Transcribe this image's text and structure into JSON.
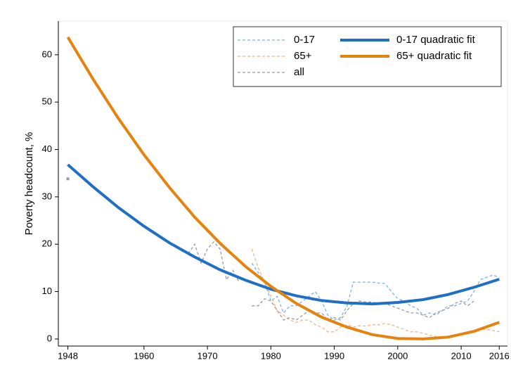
{
  "chart_data": {
    "type": "line",
    "y_label": "Poverty headcount, %",
    "xlim": [
      1946.5,
      2017.3
    ],
    "ylim": [
      -1.5,
      67.1
    ],
    "xticks": [
      1948,
      1960,
      1970,
      1980,
      1990,
      2000,
      2010,
      2016
    ],
    "yticks": [
      0,
      10,
      20,
      30,
      40,
      50,
      60
    ],
    "series": [
      {
        "name": "0-17",
        "color": "#74b3ea",
        "style": "dashed",
        "x": [
          1977,
          1978,
          1979,
          1980,
          1981,
          1982,
          1983,
          1984,
          1985,
          1986,
          1987,
          1988,
          1989,
          1990,
          1991,
          1992,
          1993,
          1994,
          1995,
          1996,
          1997,
          1998,
          1999,
          2000,
          2001,
          2002,
          2003,
          2004,
          2005,
          2006,
          2007,
          2008,
          2009,
          2010,
          2011,
          2012,
          2013,
          2014,
          2015,
          2016
        ],
        "values": [
          16,
          14,
          12,
          8,
          9,
          5.5,
          7,
          7,
          8,
          9,
          10,
          8,
          5,
          4,
          4.5,
          7,
          12,
          12,
          12,
          12,
          11.8,
          11.7,
          10,
          8.5,
          8,
          7,
          6.5,
          5,
          5.5,
          5,
          6,
          7,
          7,
          7.5,
          8,
          10,
          12.5,
          13,
          13.5,
          13
        ]
      },
      {
        "name": "65+",
        "color": "#f6b27c",
        "style": "dashed",
        "x": [
          1977,
          1978,
          1979,
          1980,
          1981,
          1982,
          1983,
          1984,
          1985,
          1986,
          1987,
          1988,
          1989,
          1990,
          1991,
          1992,
          1993,
          1994,
          1995,
          1996,
          1997,
          1998,
          1999,
          2000,
          2001,
          2002,
          2003,
          2004,
          2005,
          2006,
          2007,
          2008,
          2009,
          2010,
          2011,
          2012,
          2013,
          2014,
          2015,
          2016
        ],
        "values": [
          19,
          15,
          12,
          9,
          6,
          5,
          4,
          3.5,
          4,
          4,
          3,
          2.5,
          1.5,
          1.5,
          2.5,
          3,
          2.5,
          2.8,
          2.7,
          3,
          3,
          3.3,
          3,
          2.5,
          2,
          1.5,
          1.5,
          1.2,
          0.8,
          0.5,
          0.3,
          0.5,
          0.8,
          1,
          1.2,
          1.5,
          2,
          2,
          1.8,
          1.5
        ]
      },
      {
        "name": "all",
        "color": "#9a9a9a",
        "style": "dashed",
        "x": [
          1948,
          1966,
          1967,
          1968,
          1969,
          1970,
          1971,
          1972,
          1973,
          1974,
          1975,
          1976,
          1977,
          1978,
          1979,
          1980,
          1981,
          1982,
          1983,
          1984,
          1985,
          1986,
          1987,
          1988,
          1989,
          1990,
          1991,
          1992,
          1993,
          1994,
          1995,
          1996,
          1997,
          1998,
          1999,
          2000,
          2001,
          2002,
          2003,
          2004,
          2005,
          2006,
          2007,
          2008,
          2009,
          2010,
          2011,
          2012
        ],
        "values": [
          33.8,
          null,
          18,
          20,
          16,
          19,
          20.5,
          19,
          12.5,
          14.5,
          12,
          null,
          7,
          7,
          8.5,
          8,
          6,
          4,
          4.5,
          4,
          5,
          6,
          5.5,
          5.5,
          4,
          4.5,
          4,
          6,
          7.5,
          8,
          7.8,
          7.8,
          7.5,
          7.5,
          7,
          6.5,
          6,
          5.5,
          5.5,
          5,
          4.5,
          5.5,
          6,
          6.5,
          7.5,
          8,
          7,
          8
        ]
      },
      {
        "name": "0-17 quadratic fit",
        "color": "#1f6fc5",
        "style": "solid",
        "x": [
          1948,
          1952,
          1956,
          1960,
          1964,
          1968,
          1972,
          1976,
          1980,
          1984,
          1988,
          1992,
          1996,
          2000,
          2004,
          2008,
          2012,
          2016
        ],
        "values": [
          36.8,
          32.1,
          27.7,
          23.8,
          20.3,
          17.3,
          14.6,
          12.4,
          10.5,
          9.1,
          8.1,
          7.6,
          7.4,
          7.7,
          8.3,
          9.4,
          10.9,
          12.6
        ]
      },
      {
        "name": "65+ quadratic fit",
        "color": "#e6820e",
        "style": "solid",
        "x": [
          1948,
          1952,
          1956,
          1960,
          1964,
          1968,
          1972,
          1976,
          1980,
          1984,
          1988,
          1992,
          1996,
          2000,
          2004,
          2008,
          2012,
          2016
        ],
        "values": [
          63.7,
          54.8,
          46.5,
          38.9,
          32.0,
          25.7,
          20.2,
          15.3,
          11.1,
          7.5,
          4.6,
          2.5,
          0.9,
          0.1,
          0.0,
          0.4,
          1.6,
          3.5
        ]
      }
    ]
  }
}
